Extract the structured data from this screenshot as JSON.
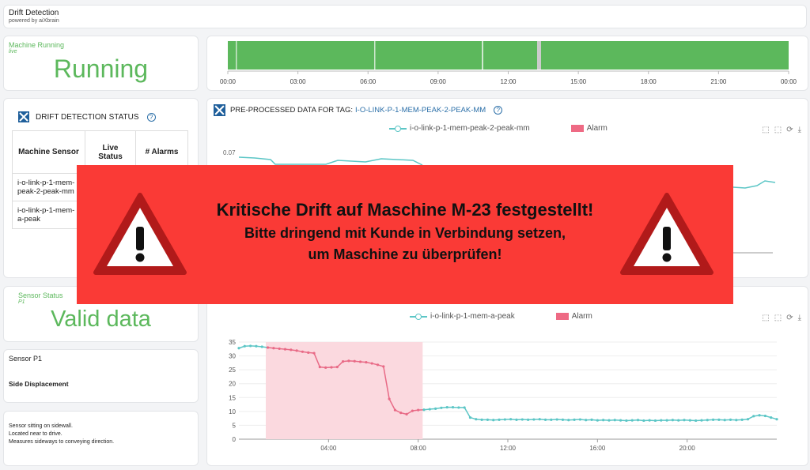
{
  "header": {
    "title": "Drift Detection",
    "subtitle": "powered by aiXbrain"
  },
  "machine_running": {
    "label": "Machine Running",
    "sub": "live",
    "value": "Running"
  },
  "timeline": {
    "ticks": [
      "00:00",
      "03:00",
      "06:00",
      "09:00",
      "12:00",
      "15:00",
      "18:00",
      "21:00",
      "00:00"
    ],
    "color": "#5cb85c",
    "gap_color": "#cccccc"
  },
  "drift_status": {
    "title": "DRIFT DETECTION STATUS",
    "help": "?",
    "columns": [
      "Machine Sensor",
      "Live Status",
      "# Alarms"
    ],
    "rows": [
      [
        "i-o-link-p-1-mem-peak-2-peak-mm",
        "",
        ""
      ],
      [
        "i-o-link-p-1-mem-a-peak",
        "",
        ""
      ]
    ]
  },
  "sensor_status": {
    "label": "Sensor Status",
    "sub": "P1",
    "value": "Valid data"
  },
  "sensor_p1": {
    "title": "Sensor P1",
    "subtitle": "Side Displacement"
  },
  "sensor_desc": {
    "lines": [
      "Sensor sitting on sidewall.",
      "Located near to drive.",
      "Measures sideways to conveying direction."
    ]
  },
  "chart1": {
    "title_prefix": "PRE-PROCESSED DATA FOR TAG:",
    "tag": "I-O-LINK-P-1-MEM-PEAK-2-PEAK-MM",
    "help": "?",
    "legend_series": "i-o-link-p-1-mem-peak-2-peak-mm",
    "legend_alarm": "Alarm",
    "tools": [
      "⬚",
      "⬚",
      "⟳",
      "⤓"
    ],
    "y_tick": "0.07"
  },
  "chart2": {
    "legend_series": "i-o-link-p-1-mem-a-peak",
    "legend_alarm": "Alarm",
    "tools": [
      "⬚",
      "⬚",
      "⟳",
      "⤓"
    ]
  },
  "chart_data": [
    {
      "type": "line",
      "title": "",
      "xlabel": "",
      "ylabel": "",
      "x_ticks": [
        "04:00",
        "08:00",
        "12:00",
        "16:00",
        "20:00"
      ],
      "y_ticks": [
        0,
        5,
        10,
        15,
        20,
        25,
        30,
        35
      ],
      "ylim": [
        0,
        35
      ],
      "alarm_range_hours": [
        1.2,
        8.2
      ],
      "series": [
        {
          "name": "i-o-link-p-1-mem-a-peak",
          "color": "#5cc6c6",
          "alarm_color": "#e86a86",
          "values": [
            32.8,
            33.5,
            33.6,
            33.5,
            33.3,
            33.0,
            32.8,
            32.6,
            32.4,
            32.2,
            31.9,
            31.5,
            31.2,
            31.0,
            26.0,
            25.8,
            25.9,
            26.0,
            28.0,
            28.2,
            28.1,
            27.9,
            27.7,
            27.3,
            26.8,
            26.2,
            14.5,
            10.5,
            9.5,
            9.0,
            10.2,
            10.5,
            10.6,
            10.8,
            11.0,
            11.3,
            11.5,
            11.5,
            11.4,
            11.4,
            7.8,
            7.2,
            7.0,
            7.0,
            6.9,
            7.0,
            7.1,
            7.2,
            7.0,
            7.1,
            7.0,
            7.1,
            7.2,
            7.0,
            7.0,
            7.1,
            7.0,
            6.9,
            7.0,
            7.1,
            6.9,
            7.0,
            6.8,
            6.9,
            6.8,
            6.9,
            6.8,
            6.7,
            6.8,
            6.9,
            6.7,
            6.8,
            6.7,
            6.8,
            6.8,
            6.9,
            6.8,
            6.9,
            6.8,
            6.7,
            6.8,
            6.9,
            7.0,
            7.0,
            6.9,
            7.0,
            6.9,
            7.0,
            7.2,
            8.3,
            8.6,
            8.4,
            7.8,
            7.2
          ]
        }
      ]
    }
  ],
  "alert": {
    "line1": "Kritische Drift auf Maschine M-23 festgestellt!",
    "line2": "Bitte dringend mit Kunde in Verbindung setzen,",
    "line3": "um Maschine zu überprüfen!",
    "color": "#fa3a36"
  }
}
